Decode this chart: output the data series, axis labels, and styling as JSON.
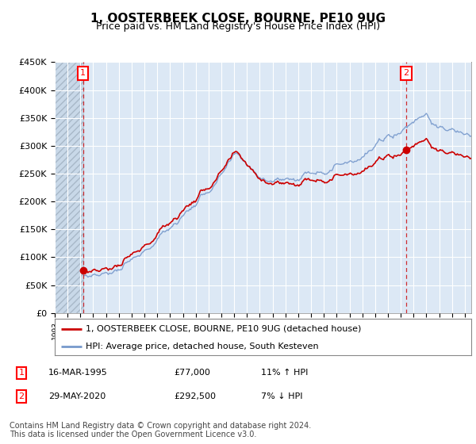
{
  "title": "1, OOSTERBEEK CLOSE, BOURNE, PE10 9UG",
  "subtitle": "Price paid vs. HM Land Registry's House Price Index (HPI)",
  "ylim": [
    0,
    450000
  ],
  "yticks": [
    0,
    50000,
    100000,
    150000,
    200000,
    250000,
    300000,
    350000,
    400000,
    450000
  ],
  "ytick_labels": [
    "£0",
    "£50K",
    "£100K",
    "£150K",
    "£200K",
    "£250K",
    "£300K",
    "£350K",
    "£400K",
    "£450K"
  ],
  "price_paid_color": "#cc0000",
  "hpi_color": "#7799cc",
  "marker1_x": 1995.21,
  "marker1_y": 77000,
  "marker2_x": 2020.42,
  "marker2_y": 292500,
  "legend_line1": "1, OOSTERBEEK CLOSE, BOURNE, PE10 9UG (detached house)",
  "legend_line2": "HPI: Average price, detached house, South Kesteven",
  "footer": "Contains HM Land Registry data © Crown copyright and database right 2024.\nThis data is licensed under the Open Government Licence v3.0.",
  "background_color": "#ffffff",
  "plot_bg_color": "#dce8f5",
  "hatch_bg_color": "#c8d8e8",
  "grid_color": "#ffffff",
  "title_fontsize": 11,
  "subtitle_fontsize": 9,
  "tick_fontsize": 8,
  "legend_fontsize": 8,
  "footer_fontsize": 7,
  "xmin": 1993,
  "xmax": 2025.5
}
